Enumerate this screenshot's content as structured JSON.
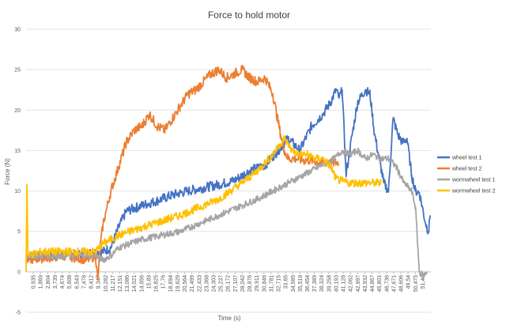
{
  "chart_data": {
    "type": "line",
    "title": "Force to hold motor",
    "xlabel": "Time (s)",
    "ylabel": "Force (N)",
    "ylim": [
      -5,
      30
    ],
    "yticks": [
      "-5",
      "0",
      "5",
      "10",
      "15",
      "20",
      "25",
      "30"
    ],
    "xlim": [
      0,
      52.5
    ],
    "xtick_labels": [
      "0,935",
      "1,869",
      "2,804",
      "3,739",
      "4,674",
      "5,608",
      "6,543",
      "7,478",
      "8,412",
      "9,347",
      "10,282",
      "11,217",
      "12,151",
      "13,086",
      "14,021",
      "14,956",
      "15,89",
      "16,825",
      "17,76",
      "18,694",
      "19,629",
      "20,564",
      "21,499",
      "22,433",
      "23,368",
      "24,303",
      "25,237",
      "26,172",
      "27,107",
      "28,042",
      "28,976",
      "29,911",
      "30,846",
      "31,781",
      "32,715",
      "33,65",
      "34,585",
      "35,519",
      "36,454",
      "37,389",
      "38,324",
      "39,258",
      "40,193",
      "41,128",
      "42,062",
      "42,997",
      "43,932",
      "44,867",
      "45,801",
      "46,736",
      "47,671",
      "48,606",
      "49,54",
      "50,475",
      "51,41"
    ],
    "grid": true,
    "legend_position": "right",
    "series": [
      {
        "name": "wheel test 1",
        "color": "#4472C4",
        "noise": 0.6,
        "x": [
          0,
          5,
          10,
          11,
          12,
          13,
          15,
          17,
          19,
          21,
          23,
          25,
          27,
          29,
          31,
          32.5,
          34,
          35.5,
          37,
          38.5,
          39.5,
          40.2,
          40.6,
          41,
          41.5,
          42.3,
          43,
          44,
          44.6,
          45.2,
          45.8,
          46.4,
          47,
          47.6,
          48.2,
          48.8,
          49.4,
          50,
          50.5,
          51,
          51.4,
          51.8,
          52.2,
          52.4
        ],
        "y": [
          2,
          2,
          2.5,
          3,
          5.5,
          7.5,
          8.2,
          8.8,
          9.5,
          10,
          10.4,
          10.8,
          11.3,
          12.5,
          13.2,
          14.8,
          16.5,
          15,
          18,
          19.5,
          21,
          22.5,
          21.5,
          22.5,
          12,
          17,
          21,
          22.5,
          22,
          17,
          14,
          11,
          10,
          19,
          17,
          16,
          16.5,
          12,
          10,
          9.8,
          8,
          6,
          5,
          7
        ]
      },
      {
        "name": "wheel test 2",
        "color": "#ED7D31",
        "noise": 0.6,
        "x": [
          0,
          5,
          8,
          9,
          9.3,
          9.6,
          10,
          10.5,
          11,
          12,
          13,
          14,
          15,
          16,
          17,
          18,
          19,
          20,
          21,
          22,
          23,
          24,
          25,
          26,
          27,
          28,
          29,
          30,
          31,
          32,
          33,
          33.5,
          34,
          34.5,
          35,
          36,
          37,
          38,
          39,
          40,
          40.5
        ],
        "y": [
          1.5,
          2,
          1.5,
          2,
          -1,
          3,
          6,
          8,
          10,
          13,
          16,
          17.5,
          18,
          19.5,
          18,
          17.5,
          19,
          20.5,
          22,
          22.5,
          23.5,
          24.5,
          25,
          24,
          24.5,
          25,
          24,
          23.5,
          24,
          22,
          17,
          15,
          14,
          14,
          14,
          13.8,
          13.8,
          13.5,
          13.5,
          13.5,
          13.5
        ]
      },
      {
        "name": "wormwheel test 1",
        "color": "#A5A5A5",
        "noise": 0.4,
        "x": [
          0,
          5,
          9,
          10,
          11,
          12,
          15,
          20,
          25,
          30,
          32,
          34,
          36,
          38,
          40,
          41,
          42,
          43,
          44,
          45,
          46,
          47,
          48,
          49,
          49.5,
          50,
          50.5,
          51,
          51.5,
          52
        ],
        "y": [
          2,
          2,
          2,
          1.5,
          2,
          3,
          4,
          5,
          7,
          9,
          10,
          11,
          12,
          13,
          14,
          15,
          14.5,
          15,
          14,
          14.5,
          14,
          14,
          13,
          11,
          10.5,
          10,
          8,
          0,
          -0.5,
          0
        ]
      },
      {
        "name": "wormwheel test 2",
        "color": "#FFC000",
        "noise": 0.5,
        "x": [
          0,
          0.1,
          0.25,
          2,
          5,
          9,
          10,
          12,
          15,
          20,
          25,
          28,
          30,
          32,
          33.5,
          34.5,
          35.5,
          36.5,
          37.5,
          38.5,
          39.5,
          40.2,
          41,
          42,
          43,
          44,
          45,
          46
        ],
        "y": [
          0,
          10.8,
          2,
          2.5,
          2.5,
          2.5,
          3.5,
          4.5,
          5.5,
          7,
          9,
          11,
          12.5,
          14.5,
          16.5,
          15,
          14.5,
          14.5,
          14,
          14,
          13,
          11.5,
          11.2,
          11,
          11,
          11,
          11,
          11
        ]
      }
    ]
  }
}
